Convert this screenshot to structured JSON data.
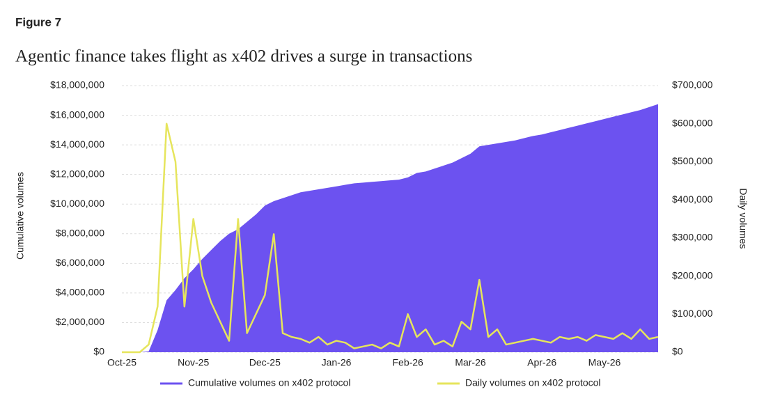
{
  "figure_label": "Figure 7",
  "chart_data": {
    "type": "area-line",
    "title": "Agentic finance takes flight as x402 drives a surge in transactions",
    "y_label": "Cumulative volumes",
    "y2_label": "Daily volumes",
    "categories": [
      "Oct-25",
      null,
      null,
      null,
      null,
      null,
      null,
      null,
      "Nov-25",
      null,
      null,
      null,
      null,
      null,
      null,
      null,
      "Dec-25",
      null,
      null,
      null,
      null,
      null,
      null,
      null,
      "Jan-26",
      null,
      null,
      null,
      null,
      null,
      null,
      null,
      "Feb-26",
      null,
      null,
      null,
      null,
      null,
      null,
      "Mar-26",
      null,
      null,
      null,
      null,
      null,
      null,
      null,
      "Apr-26",
      null,
      null,
      null,
      null,
      null,
      null,
      "May-26",
      null,
      null,
      null,
      null,
      null,
      null
    ],
    "series": [
      {
        "name": "Cumulative volumes on x402 protocol",
        "color": "#6c52f0",
        "type": "area",
        "axis": "y",
        "values": [
          0,
          0,
          0,
          50000,
          1500000,
          3500000,
          4200000,
          5000000,
          5600000,
          6300000,
          6900000,
          7500000,
          8000000,
          8300000,
          8800000,
          9300000,
          9900000,
          10200000,
          10400000,
          10600000,
          10800000,
          10900000,
          11000000,
          11100000,
          11200000,
          11300000,
          11400000,
          11450000,
          11500000,
          11550000,
          11600000,
          11650000,
          11800000,
          12100000,
          12200000,
          12400000,
          12600000,
          12800000,
          13100000,
          13400000,
          13900000,
          14000000,
          14100000,
          14200000,
          14300000,
          14450000,
          14600000,
          14700000,
          14850000,
          15000000,
          15150000,
          15300000,
          15450000,
          15600000,
          15750000,
          15900000,
          16050000,
          16200000,
          16350000,
          16550000,
          16750000
        ]
      },
      {
        "name": "Daily volumes on x402 protocol",
        "color": "#e6e55c",
        "type": "line",
        "axis": "y2",
        "values": [
          0,
          0,
          0,
          20000,
          120000,
          600000,
          500000,
          120000,
          350000,
          200000,
          130000,
          80000,
          30000,
          350000,
          50000,
          100000,
          150000,
          310000,
          50000,
          40000,
          35000,
          25000,
          40000,
          20000,
          30000,
          25000,
          10000,
          15000,
          20000,
          10000,
          25000,
          15000,
          100000,
          40000,
          60000,
          20000,
          30000,
          15000,
          80000,
          60000,
          190000,
          40000,
          60000,
          20000,
          25000,
          30000,
          35000,
          30000,
          25000,
          40000,
          35000,
          40000,
          30000,
          45000,
          40000,
          35000,
          50000,
          35000,
          60000,
          35000,
          40000
        ]
      }
    ],
    "ylim": [
      0,
      18000000
    ],
    "yticks": [
      {
        "value": 0,
        "label": "$0"
      },
      {
        "value": 2000000,
        "label": "$2,000,000"
      },
      {
        "value": 4000000,
        "label": "$4,000,000"
      },
      {
        "value": 6000000,
        "label": "$6,000,000"
      },
      {
        "value": 8000000,
        "label": "$8,000,000"
      },
      {
        "value": 10000000,
        "label": "$10,000,000"
      },
      {
        "value": 12000000,
        "label": "$12,000,000"
      },
      {
        "value": 14000000,
        "label": "$14,000,000"
      },
      {
        "value": 16000000,
        "label": "$16,000,000"
      },
      {
        "value": 18000000,
        "label": "$18,000,000"
      }
    ],
    "y2lim": [
      0,
      700000
    ],
    "y2ticks": [
      {
        "value": 0,
        "label": "$0"
      },
      {
        "value": 100000,
        "label": "$100,000"
      },
      {
        "value": 200000,
        "label": "$200,000"
      },
      {
        "value": 300000,
        "label": "$300,000"
      },
      {
        "value": 400000,
        "label": "$400,000"
      },
      {
        "value": 500000,
        "label": "$500,000"
      },
      {
        "value": 600000,
        "label": "$600,000"
      },
      {
        "value": 700000,
        "label": "$700,000"
      }
    ],
    "grid": true,
    "legend": "bottom"
  }
}
